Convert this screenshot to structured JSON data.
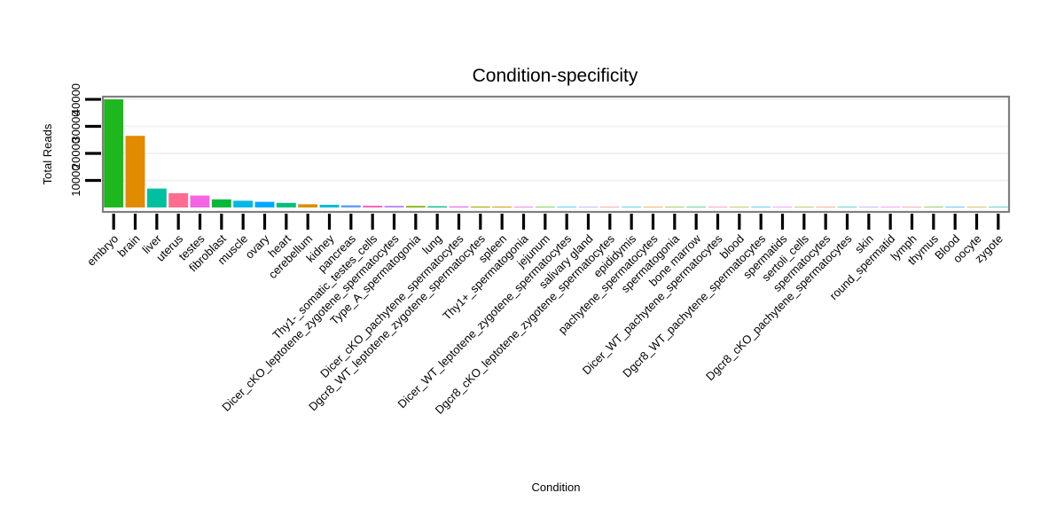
{
  "chart_data": {
    "type": "bar",
    "title": "Condition-specificity",
    "xlabel": "Condition",
    "ylabel": "Total Reads",
    "ylim": [
      0,
      41000
    ],
    "yticks": [
      10000,
      20000,
      30000,
      40000
    ],
    "ytick_labels": [
      "10000",
      "20000",
      "30000",
      "40000"
    ],
    "categories": [
      "embryo",
      "brain",
      "liver",
      "uterus",
      "testes",
      "fibroblast",
      "muscle",
      "ovary",
      "heart",
      "cerebellum",
      "kidney",
      "pancreas",
      "Thy1-_somatic_testes_cells",
      "Dicer_cKO_leptotene_zygotene_spermatocytes",
      "Type_A_spermatogonia",
      "lung",
      "Dicer_cKO_pachytene_spermatocytes",
      "Dgcr8_WT_leptotene_zygotene_spermatocytes",
      "spleen",
      "Thy1+_spermatogonia",
      "jejunum",
      "Dicer_WT_leptotene_zygotene_spermatocytes",
      "salivary gland",
      "Dgcr8_cKO_leptotene_zygotene_spermatocytes",
      "epididymis",
      "pachytene_spermatocytes",
      "spermatogonia",
      "bone marrow",
      "Dicer_WT_pachytene_spermatocytes",
      "blood",
      "Dgcr8_WT_pachytene_spermatocytes",
      "spermatids",
      "sertoli_cells",
      "spermatocytes",
      "Dgcr8_cKO_pachytene_spermatocytes",
      "skin",
      "round_spermatid",
      "lymph",
      "thymus",
      "Blood",
      "oocyte",
      "zygote"
    ],
    "values": [
      40000,
      26500,
      7000,
      5300,
      4400,
      3000,
      2500,
      2100,
      1700,
      1200,
      1000,
      800,
      650,
      600,
      550,
      450,
      400,
      350,
      300,
      250,
      200,
      180,
      150,
      120,
      100,
      90,
      80,
      70,
      60,
      50,
      45,
      40,
      35,
      30,
      25,
      20,
      15,
      12,
      10,
      8,
      5,
      3
    ],
    "colors": [
      "#1eb81e",
      "#e08b00",
      "#00c19f",
      "#ff6c91",
      "#f564e3",
      "#00ba38",
      "#00b9e3",
      "#00a9ff",
      "#00bf7d",
      "#d89000",
      "#00bcd8",
      "#619cff",
      "#ff62bc",
      "#b983ff",
      "#7cae00",
      "#00c08b",
      "#e76bf3",
      "#a3a500",
      "#c99800",
      "#fb61d7",
      "#39b600",
      "#00b0f6",
      "#9590ff",
      "#f8766d",
      "#00bfc4",
      "#e58700",
      "#6bb100",
      "#00bd5c",
      "#ff67a4",
      "#b0a100",
      "#00b4ef",
      "#dc71fa",
      "#8ab504",
      "#f17e4e",
      "#00c1a8",
      "#ae87ff",
      "#ec69ef",
      "#fd6f86",
      "#4fb400",
      "#00a5ff",
      "#c49a00",
      "#00beb0"
    ],
    "grid": true,
    "legend": "none"
  }
}
